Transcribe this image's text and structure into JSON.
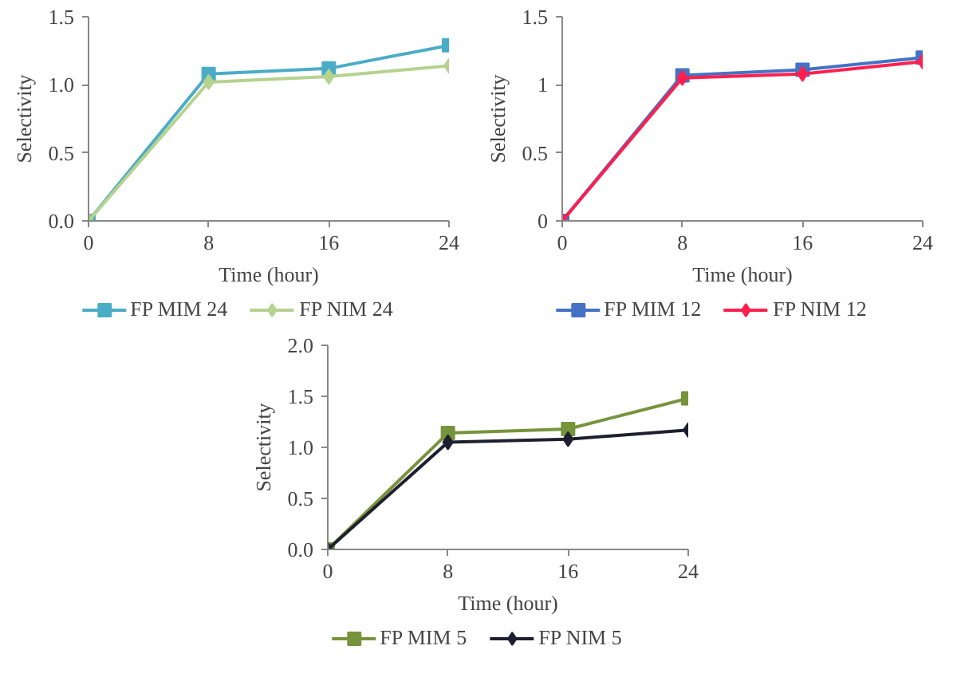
{
  "chart_data": [
    {
      "type": "line",
      "xlabel": "Time (hour)",
      "ylabel": "Selectivity",
      "x": [
        0,
        8,
        16,
        24
      ],
      "xlim": [
        0,
        24
      ],
      "xticks": [
        0,
        8,
        16,
        24
      ],
      "ylim": [
        0,
        1.5
      ],
      "yticks": [
        {
          "value": 0,
          "label": "0.0"
        },
        {
          "value": 0.5,
          "label": "0.5"
        },
        {
          "value": 1,
          "label": "1.0"
        },
        {
          "value": 1.5,
          "label": "1.5"
        }
      ],
      "grid": false,
      "legend": "bottom",
      "series": [
        {
          "name": "FP MIM 24",
          "color": "#4bacc6",
          "marker": "square",
          "values": [
            0,
            1.08,
            1.12,
            1.29
          ]
        },
        {
          "name": "FP NIM 24",
          "color": "#b5d28e",
          "marker": "diamond",
          "values": [
            0,
            1.02,
            1.06,
            1.14
          ]
        }
      ]
    },
    {
      "type": "line",
      "xlabel": "Time (hour)",
      "ylabel": "Selectivity",
      "x": [
        0,
        8,
        16,
        24
      ],
      "xlim": [
        0,
        24
      ],
      "xticks": [
        0,
        8,
        16,
        24
      ],
      "ylim": [
        0,
        1.5
      ],
      "yticks": [
        0,
        0.5,
        1,
        1.5
      ],
      "grid": false,
      "legend": "bottom",
      "series": [
        {
          "name": "FP MIM 12",
          "color": "#4472c4",
          "marker": "square",
          "values": [
            0,
            1.07,
            1.11,
            1.2
          ]
        },
        {
          "name": "FP NIM 12",
          "color": "#ff1f4f",
          "marker": "diamond",
          "values": [
            0,
            1.05,
            1.08,
            1.17
          ]
        }
      ]
    },
    {
      "type": "line",
      "xlabel": "Time (hour)",
      "ylabel": "Selectivity",
      "x": [
        0,
        8,
        16,
        24
      ],
      "xlim": [
        0,
        24
      ],
      "xticks": [
        0,
        8,
        16,
        24
      ],
      "ylim": [
        0,
        2
      ],
      "yticks": [
        {
          "value": 0,
          "label": "0.0"
        },
        {
          "value": 0.5,
          "label": "0.5"
        },
        {
          "value": 1,
          "label": "1.0"
        },
        {
          "value": 1.5,
          "label": "1.5"
        },
        {
          "value": 2,
          "label": "2.0"
        }
      ],
      "grid": false,
      "legend": "bottom",
      "series": [
        {
          "name": "FP MIM 5",
          "color": "#77933c",
          "marker": "square",
          "values": [
            0,
            1.14,
            1.18,
            1.48
          ]
        },
        {
          "name": "FP NIM 5",
          "color": "#1f1f2f",
          "marker": "diamond",
          "values": [
            0,
            1.05,
            1.08,
            1.17
          ]
        }
      ]
    }
  ]
}
